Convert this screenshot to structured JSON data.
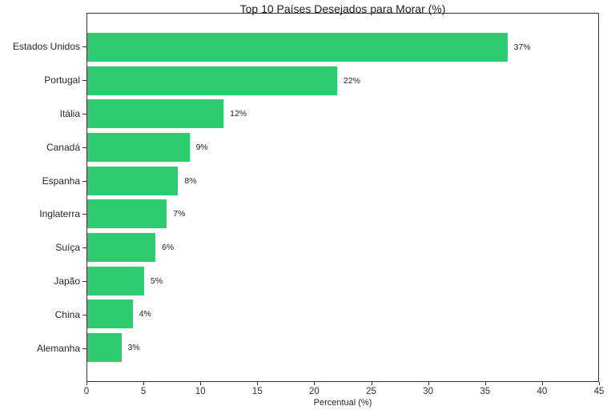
{
  "chart_data": {
    "type": "bar",
    "orientation": "horizontal",
    "title": "Top 10 Países Desejados para Morar (%)",
    "xlabel": "Percentual (%)",
    "ylabel": "",
    "categories": [
      "Estados Unidos",
      "Portugal",
      "Itália",
      "Canadá",
      "Espanha",
      "Inglaterra",
      "Suíça",
      "Japão",
      "China",
      "Alemanha"
    ],
    "values": [
      37,
      22,
      12,
      9,
      8,
      7,
      6,
      5,
      4,
      3
    ],
    "value_labels": [
      "37%",
      "22%",
      "12%",
      "9%",
      "8%",
      "7%",
      "6%",
      "5%",
      "4%",
      "3%"
    ],
    "xlim": [
      0,
      45
    ],
    "xticks": [
      0,
      5,
      10,
      15,
      20,
      25,
      30,
      35,
      40,
      45
    ],
    "bar_color": "#2ecc71",
    "spine_color": "#333333",
    "background_color": "#ffffff",
    "grid": false,
    "legend": null
  }
}
